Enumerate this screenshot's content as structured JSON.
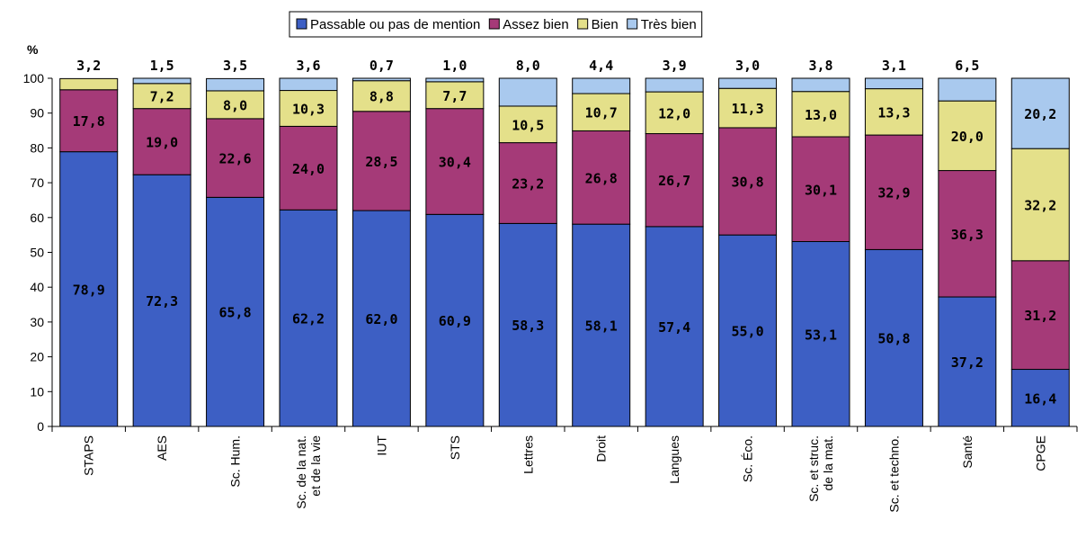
{
  "chart_data": {
    "type": "bar",
    "stacked": true,
    "unit_label": "%",
    "ylim": [
      0,
      100
    ],
    "yticks": [
      0,
      10,
      20,
      30,
      40,
      50,
      60,
      70,
      80,
      90,
      100
    ],
    "grid": false,
    "legend_position": "top",
    "categories": [
      [
        "STAPS"
      ],
      [
        "AES"
      ],
      [
        "Sc. Hum."
      ],
      [
        "Sc. de la nat.",
        "et de la vie"
      ],
      [
        "IUT"
      ],
      [
        "STS"
      ],
      [
        "Lettres"
      ],
      [
        "Droit"
      ],
      [
        "Langues"
      ],
      [
        "Sc. Éco."
      ],
      [
        "Sc. et struc.",
        "de la mat."
      ],
      [
        "Sc. et techno."
      ],
      [
        "Santé"
      ],
      [
        "CPGE"
      ]
    ],
    "series": [
      {
        "name": "Passable ou pas de mention",
        "color": "#3d5fc4",
        "values": [
          78.9,
          72.3,
          65.8,
          62.2,
          62.0,
          60.9,
          58.3,
          58.1,
          57.4,
          55.0,
          53.1,
          50.8,
          37.2,
          16.4
        ],
        "labels": [
          "78,9",
          "72,3",
          "65,8",
          "62,2",
          "62,0",
          "60,9",
          "58,3",
          "58,1",
          "57,4",
          "55,0",
          "53,1",
          "50,8",
          "37,2",
          "16,4"
        ]
      },
      {
        "name": "Assez bien",
        "color": "#a53a78",
        "values": [
          17.8,
          19.0,
          22.6,
          24.0,
          28.5,
          30.4,
          23.2,
          26.8,
          26.7,
          30.8,
          30.1,
          32.9,
          36.3,
          31.2
        ],
        "labels": [
          "17,8",
          "19,0",
          "22,6",
          "24,0",
          "28,5",
          "30,4",
          "23,2",
          "26,8",
          "26,7",
          "30,8",
          "30,1",
          "32,9",
          "36,3",
          "31,2"
        ]
      },
      {
        "name": "Bien",
        "color": "#e4e08a",
        "values": [
          3.2,
          7.2,
          8.0,
          10.3,
          8.8,
          7.7,
          10.5,
          10.7,
          12.0,
          11.3,
          13.0,
          13.3,
          20.0,
          32.2
        ],
        "labels": [
          "3,2",
          "7,2",
          "8,0",
          "10,3",
          "8,8",
          "7,7",
          "10,5",
          "10,7",
          "12,0",
          "11,3",
          "13,0",
          "13,3",
          "20,0",
          "32,2"
        ]
      },
      {
        "name": "Très bien",
        "color": "#a9c9ee",
        "values": [
          0.0,
          1.5,
          3.5,
          3.6,
          0.7,
          1.0,
          8.0,
          4.4,
          3.9,
          3.0,
          3.8,
          3.1,
          6.5,
          20.2
        ],
        "labels": [
          "",
          "1,5",
          "3,5",
          "3,6",
          "0,7",
          "1,0",
          "8,0",
          "4,4",
          "3,9",
          "3,0",
          "3,8",
          "3,1",
          "6,5",
          "20,2"
        ]
      }
    ]
  }
}
